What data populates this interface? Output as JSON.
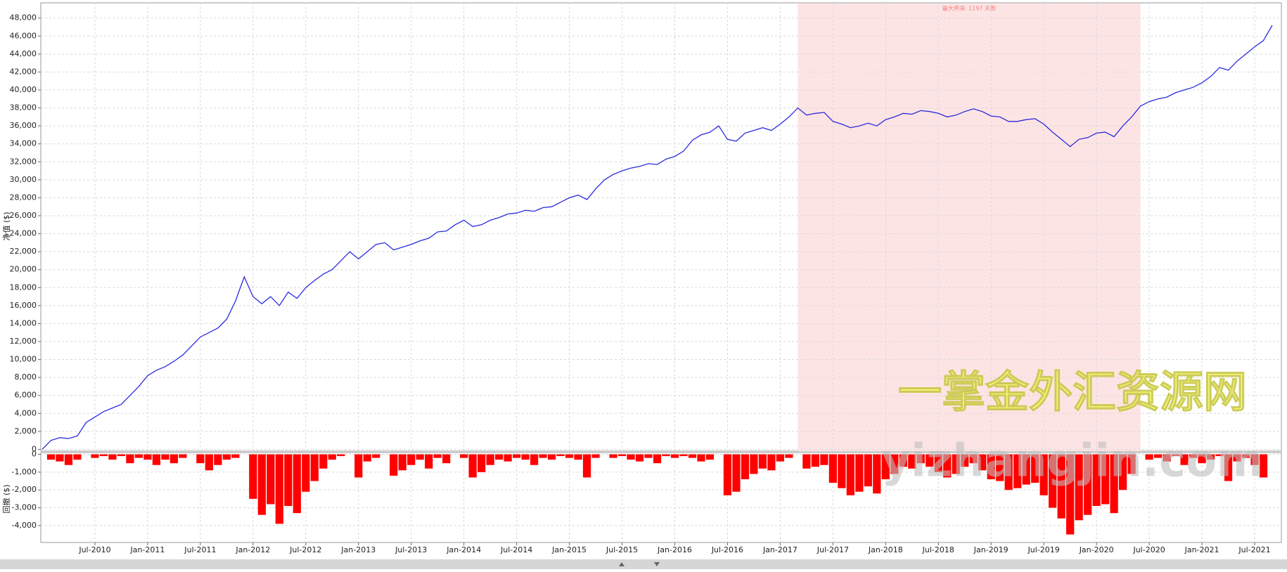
{
  "chart_data": [
    {
      "type": "line",
      "ylabel": "净值 ($)",
      "x": [
        "Jan-2010",
        "Feb-2010",
        "Mar-2010",
        "Apr-2010",
        "May-2010",
        "Jun-2010",
        "Jul-2010",
        "Aug-2010",
        "Sep-2010",
        "Oct-2010",
        "Nov-2010",
        "Dec-2010",
        "Jan-2011",
        "Feb-2011",
        "Mar-2011",
        "Apr-2011",
        "May-2011",
        "Jun-2011",
        "Jul-2011",
        "Aug-2011",
        "Sep-2011",
        "Oct-2011",
        "Nov-2011",
        "Dec-2011",
        "Jan-2012",
        "Feb-2012",
        "Mar-2012",
        "Apr-2012",
        "May-2012",
        "Jun-2012",
        "Jul-2012",
        "Aug-2012",
        "Sep-2012",
        "Oct-2012",
        "Nov-2012",
        "Dec-2012",
        "Jan-2013",
        "Feb-2013",
        "Mar-2013",
        "Apr-2013",
        "May-2013",
        "Jun-2013",
        "Jul-2013",
        "Aug-2013",
        "Sep-2013",
        "Oct-2013",
        "Nov-2013",
        "Dec-2013",
        "Jan-2014",
        "Feb-2014",
        "Mar-2014",
        "Apr-2014",
        "May-2014",
        "Jun-2014",
        "Jul-2014",
        "Aug-2014",
        "Sep-2014",
        "Oct-2014",
        "Nov-2014",
        "Dec-2014",
        "Jan-2015",
        "Feb-2015",
        "Mar-2015",
        "Apr-2015",
        "May-2015",
        "Jun-2015",
        "Jul-2015",
        "Aug-2015",
        "Sep-2015",
        "Oct-2015",
        "Nov-2015",
        "Dec-2015",
        "Jan-2016",
        "Feb-2016",
        "Mar-2016",
        "Apr-2016",
        "May-2016",
        "Jun-2016",
        "Jul-2016",
        "Aug-2016",
        "Sep-2016",
        "Oct-2016",
        "Nov-2016",
        "Dec-2016",
        "Jan-2017",
        "Feb-2017",
        "Mar-2017",
        "Apr-2017",
        "May-2017",
        "Jun-2017",
        "Jul-2017",
        "Aug-2017",
        "Sep-2017",
        "Oct-2017",
        "Nov-2017",
        "Dec-2017",
        "Jan-2018",
        "Feb-2018",
        "Mar-2018",
        "Apr-2018",
        "May-2018",
        "Jun-2018",
        "Jul-2018",
        "Aug-2018",
        "Sep-2018",
        "Oct-2018",
        "Nov-2018",
        "Dec-2018",
        "Jan-2019",
        "Feb-2019",
        "Mar-2019",
        "Apr-2019",
        "May-2019",
        "Jun-2019",
        "Jul-2019",
        "Aug-2019",
        "Sep-2019",
        "Oct-2019",
        "Nov-2019",
        "Dec-2019",
        "Jan-2020",
        "Feb-2020",
        "Mar-2020",
        "Apr-2020",
        "May-2020",
        "Jun-2020",
        "Jul-2020",
        "Aug-2020",
        "Sep-2020",
        "Oct-2020",
        "Nov-2020",
        "Dec-2020",
        "Jan-2021",
        "Feb-2021",
        "Mar-2021",
        "Apr-2021",
        "May-2021",
        "Jun-2021",
        "Jul-2021",
        "Aug-2021",
        "Sep-2021"
      ],
      "series": [
        {
          "color": "#2b2be0",
          "values": [
            0,
            1000,
            1300,
            1200,
            1500,
            3000,
            3600,
            4200,
            4600,
            5000,
            6000,
            7000,
            8200,
            8800,
            9200,
            9800,
            10500,
            11500,
            12500,
            13000,
            13500,
            14500,
            16500,
            19200,
            17000,
            16200,
            17000,
            16000,
            17500,
            16800,
            18000,
            18800,
            19500,
            20000,
            21000,
            22000,
            21200,
            22000,
            22800,
            23000,
            22200,
            22500,
            22800,
            23200,
            23500,
            24200,
            24300,
            25000,
            25500,
            24800,
            25000,
            25500,
            25800,
            26200,
            26300,
            26600,
            26500,
            26900,
            27000,
            27500,
            28000,
            28300,
            27800,
            29000,
            30000,
            30600,
            31000,
            31300,
            31500,
            31800,
            31700,
            32300,
            32600,
            33200,
            34400,
            35000,
            35300,
            36000,
            34500,
            34300,
            35200,
            35500,
            35800,
            35500,
            36200,
            37000,
            38000,
            37200,
            37400,
            37500,
            36500,
            36200,
            35800,
            36000,
            36300,
            36000,
            36700,
            37000,
            37400,
            37300,
            37700,
            37600,
            37400,
            37000,
            37200,
            37600,
            37900,
            37600,
            37100,
            37000,
            36500,
            36500,
            36700,
            36800,
            36200,
            35300,
            34500,
            33700,
            34500,
            34700,
            35200,
            35300,
            34800,
            36000,
            37000,
            38200,
            38700,
            39000,
            39200,
            39700,
            40000,
            40300,
            40800,
            41500,
            42500,
            42200,
            43200,
            44000,
            44800,
            45500,
            47200
          ]
        }
      ],
      "ylim": [
        -200,
        49700
      ],
      "yticks": [
        0,
        {
          "value": 2000,
          "label": "2,000"
        },
        {
          "value": 4000,
          "label": "4,000"
        },
        {
          "value": 6000,
          "label": "6,000"
        },
        {
          "value": 8000,
          "label": "8,000"
        },
        {
          "value": 10000,
          "label": "10,000"
        },
        {
          "value": 12000,
          "label": "12,000"
        },
        {
          "value": 14000,
          "label": "14,000"
        },
        {
          "value": 16000,
          "label": "16,000"
        },
        {
          "value": 18000,
          "label": "18,000"
        },
        {
          "value": 20000,
          "label": "20,000"
        },
        {
          "value": 22000,
          "label": "22,000"
        },
        {
          "value": 24000,
          "label": "24,000"
        },
        {
          "value": 26000,
          "label": "26,000"
        },
        {
          "value": 28000,
          "label": "28,000"
        },
        {
          "value": 30000,
          "label": "30,000"
        },
        {
          "value": 32000,
          "label": "32,000"
        },
        {
          "value": 34000,
          "label": "34,000"
        },
        {
          "value": 36000,
          "label": "36,000"
        },
        {
          "value": 38000,
          "label": "38,000"
        },
        {
          "value": 40000,
          "label": "40,000"
        },
        {
          "value": 42000,
          "label": "42,000"
        },
        {
          "value": 44000,
          "label": "44,000"
        },
        {
          "value": 46000,
          "label": "46,000"
        },
        {
          "value": 48000,
          "label": "48,000"
        }
      ],
      "grid": true,
      "annotation": {
        "label": "最大停滞: 1197 天数",
        "span": [
          "Mar-2017",
          "Jun-2020"
        ],
        "color": "#fde4e4"
      }
    },
    {
      "type": "bar",
      "ylabel": "回撤 ($)",
      "color": "#ff0000",
      "values": [
        0,
        -300,
        -400,
        -600,
        -300,
        0,
        -200,
        -100,
        -300,
        -100,
        -500,
        -200,
        -300,
        -600,
        -300,
        -500,
        -200,
        0,
        -500,
        -900,
        -600,
        -300,
        -200,
        0,
        -2500,
        -3400,
        -2800,
        -3900,
        -2900,
        -3300,
        -2100,
        -1500,
        -800,
        -300,
        -100,
        0,
        -1300,
        -400,
        -200,
        0,
        -1200,
        -900,
        -600,
        -300,
        -800,
        -200,
        -500,
        0,
        -200,
        -1300,
        -1000,
        -600,
        -300,
        -400,
        -200,
        -300,
        -600,
        -200,
        -300,
        -100,
        -200,
        -300,
        -1300,
        -200,
        0,
        -200,
        -100,
        -300,
        -400,
        -200,
        -500,
        -100,
        -200,
        -100,
        -200,
        -400,
        -300,
        0,
        -2300,
        -2100,
        -1400,
        -1100,
        -800,
        -900,
        -400,
        -200,
        0,
        -800,
        -700,
        -600,
        -1600,
        -1900,
        -2300,
        -2100,
        -1800,
        -2200,
        -1400,
        -1100,
        -700,
        -800,
        -500,
        -700,
        -1000,
        -1300,
        -1100,
        -700,
        -500,
        -900,
        -1400,
        -1500,
        -2000,
        -1900,
        -1700,
        -1600,
        -2300,
        -3000,
        -3600,
        -4500,
        -3700,
        -3400,
        -2900,
        -2800,
        -3300,
        -2000,
        -1100,
        0,
        -300,
        -200,
        -400,
        -100,
        -600,
        -200,
        -500,
        -300,
        -100,
        -1500,
        -400,
        -200,
        -600,
        -1300,
        0
      ],
      "ylim": [
        -4950,
        100
      ],
      "yticks": [
        0,
        {
          "value": -1000,
          "label": "-1,000"
        },
        {
          "value": -2000,
          "label": "-2,000"
        },
        {
          "value": -3000,
          "label": "-3,000"
        },
        {
          "value": -4000,
          "label": "-4,000"
        }
      ],
      "xticks": [
        "Jul-2010",
        "Jan-2011",
        "Jul-2011",
        "Jan-2012",
        "Jul-2012",
        "Jan-2013",
        "Jul-2013",
        "Jan-2014",
        "Jul-2014",
        "Jan-2015",
        "Jul-2015",
        "Jan-2016",
        "Jul-2016",
        "Jan-2017",
        "Jul-2017",
        "Jan-2018",
        "Jul-2018",
        "Jan-2019",
        "Jul-2019",
        "Jan-2020",
        "Jul-2020",
        "Jan-2021",
        "Jul-2021"
      ],
      "grid": true
    }
  ],
  "watermark": {
    "title": "一掌金外汇资源网",
    "url": "yizhangjin.com"
  }
}
